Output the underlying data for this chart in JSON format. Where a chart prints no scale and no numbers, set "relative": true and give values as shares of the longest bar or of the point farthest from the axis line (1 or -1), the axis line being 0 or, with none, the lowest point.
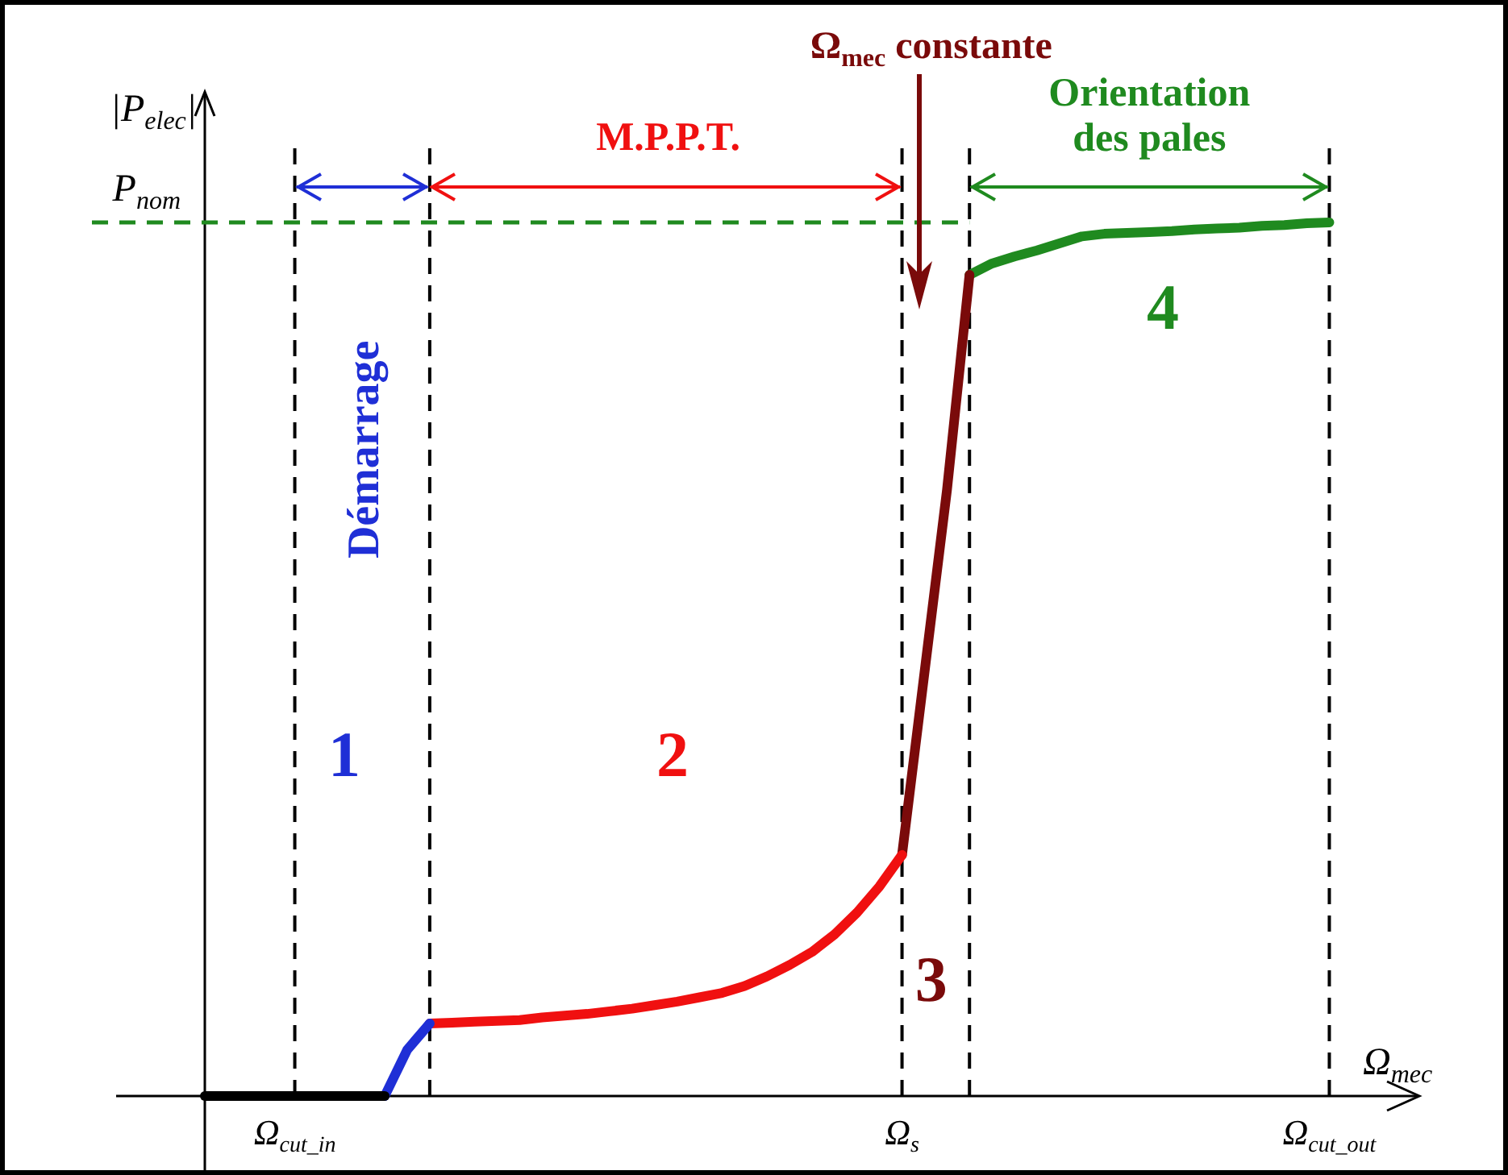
{
  "chart_data": {
    "type": "line",
    "relative": true,
    "xlabel": "Ω$_{mec}$",
    "ylabel": "|P$_{elec}$|",
    "categories": [
      null,
      null,
      null,
      null,
      "Ω$_{cut_in}$",
      null,
      null,
      null,
      null,
      null,
      null,
      null,
      null,
      null,
      null,
      null,
      null,
      null,
      null,
      null,
      null,
      null,
      null,
      null,
      null,
      null,
      null,
      null,
      null,
      null,
      null,
      "Ω$_{s}$",
      null,
      null,
      null,
      null,
      null,
      null,
      null,
      null,
      null,
      null,
      null,
      null,
      null,
      null,
      null,
      null,
      null,
      null,
      "Ω$_{cut_out}$",
      null,
      null,
      null,
      null
    ],
    "series": [
      {
        "color": "#000000",
        "values": [
          0,
          0,
          0,
          0,
          0,
          0,
          0,
          0,
          0,
          null,
          null,
          null,
          null,
          null,
          null,
          null,
          null,
          null,
          null,
          null,
          null,
          null,
          null,
          null,
          null,
          null,
          null,
          null,
          null,
          null,
          null,
          null,
          null,
          null,
          null,
          null,
          null,
          null,
          null,
          null,
          null,
          null,
          null,
          null,
          null,
          null,
          null,
          null,
          null,
          null,
          null,
          null,
          null,
          null,
          null
        ]
      },
      {
        "color": "#1f2fd6",
        "values": [
          null,
          null,
          null,
          null,
          null,
          null,
          null,
          null,
          0,
          0.053,
          0.083,
          null,
          null,
          null,
          null,
          null,
          null,
          null,
          null,
          null,
          null,
          null,
          null,
          null,
          null,
          null,
          null,
          null,
          null,
          null,
          null,
          null,
          null,
          null,
          null,
          null,
          null,
          null,
          null,
          null,
          null,
          null,
          null,
          null,
          null,
          null,
          null,
          null,
          null,
          null,
          null,
          null,
          null,
          null,
          null
        ]
      },
      {
        "color": "#f01010",
        "values": [
          null,
          null,
          null,
          null,
          null,
          null,
          null,
          null,
          null,
          null,
          0.083,
          0.084,
          0.085,
          0.086,
          0.087,
          0.09,
          0.092,
          0.094,
          0.097,
          0.1,
          0.104,
          0.108,
          0.113,
          0.118,
          0.126,
          0.137,
          0.15,
          0.165,
          0.185,
          0.21,
          0.24,
          0.276,
          null,
          null,
          null,
          null,
          null,
          null,
          null,
          null,
          null,
          null,
          null,
          null,
          null,
          null,
          null,
          null,
          null,
          null,
          null,
          null,
          null,
          null,
          null
        ]
      },
      {
        "color": "#7a0a0a",
        "values": [
          null,
          null,
          null,
          null,
          null,
          null,
          null,
          null,
          null,
          null,
          null,
          null,
          null,
          null,
          null,
          null,
          null,
          null,
          null,
          null,
          null,
          null,
          null,
          null,
          null,
          null,
          null,
          null,
          null,
          null,
          null,
          0.276,
          0.485,
          0.694,
          0.94,
          null,
          null,
          null,
          null,
          null,
          null,
          null,
          null,
          null,
          null,
          null,
          null,
          null,
          null,
          null,
          null,
          null,
          null,
          null,
          null
        ]
      },
      {
        "color": "#1f8a1f",
        "values": [
          null,
          null,
          null,
          null,
          null,
          null,
          null,
          null,
          null,
          null,
          null,
          null,
          null,
          null,
          null,
          null,
          null,
          null,
          null,
          null,
          null,
          null,
          null,
          null,
          null,
          null,
          null,
          null,
          null,
          null,
          null,
          null,
          null,
          null,
          0.94,
          0.953,
          0.961,
          0.968,
          0.976,
          0.984,
          0.987,
          0.988,
          0.989,
          0.99,
          0.992,
          0.993,
          0.994,
          0.996,
          0.997,
          0.999,
          1,
          null,
          null,
          null,
          null
        ]
      }
    ],
    "legend": false,
    "marker": "none",
    "line_style": "solid",
    "ref_lines": [
      {
        "axis": "y",
        "value": 1,
        "label": "P$_{nom}$",
        "color": "#1f8a1f",
        "line_style": "dashed"
      },
      {
        "axis": "x",
        "value": "Ω$_{cut_in}$",
        "color": "#000000",
        "line_style": "dashed"
      },
      {
        "axis": "x",
        "value": "Ω$_{s}$",
        "color": "#000000",
        "line_style": "dashed"
      },
      {
        "axis": "x",
        "value": "Ω$_{cut_out}$",
        "color": "#000000",
        "line_style": "dashed"
      }
    ],
    "annotations": [
      "Démarrage",
      "M.P.P.T.",
      "Ω$_{mec}$ constante",
      "Orientation\ndes pales",
      "1",
      "2",
      "3",
      "4"
    ]
  }
}
